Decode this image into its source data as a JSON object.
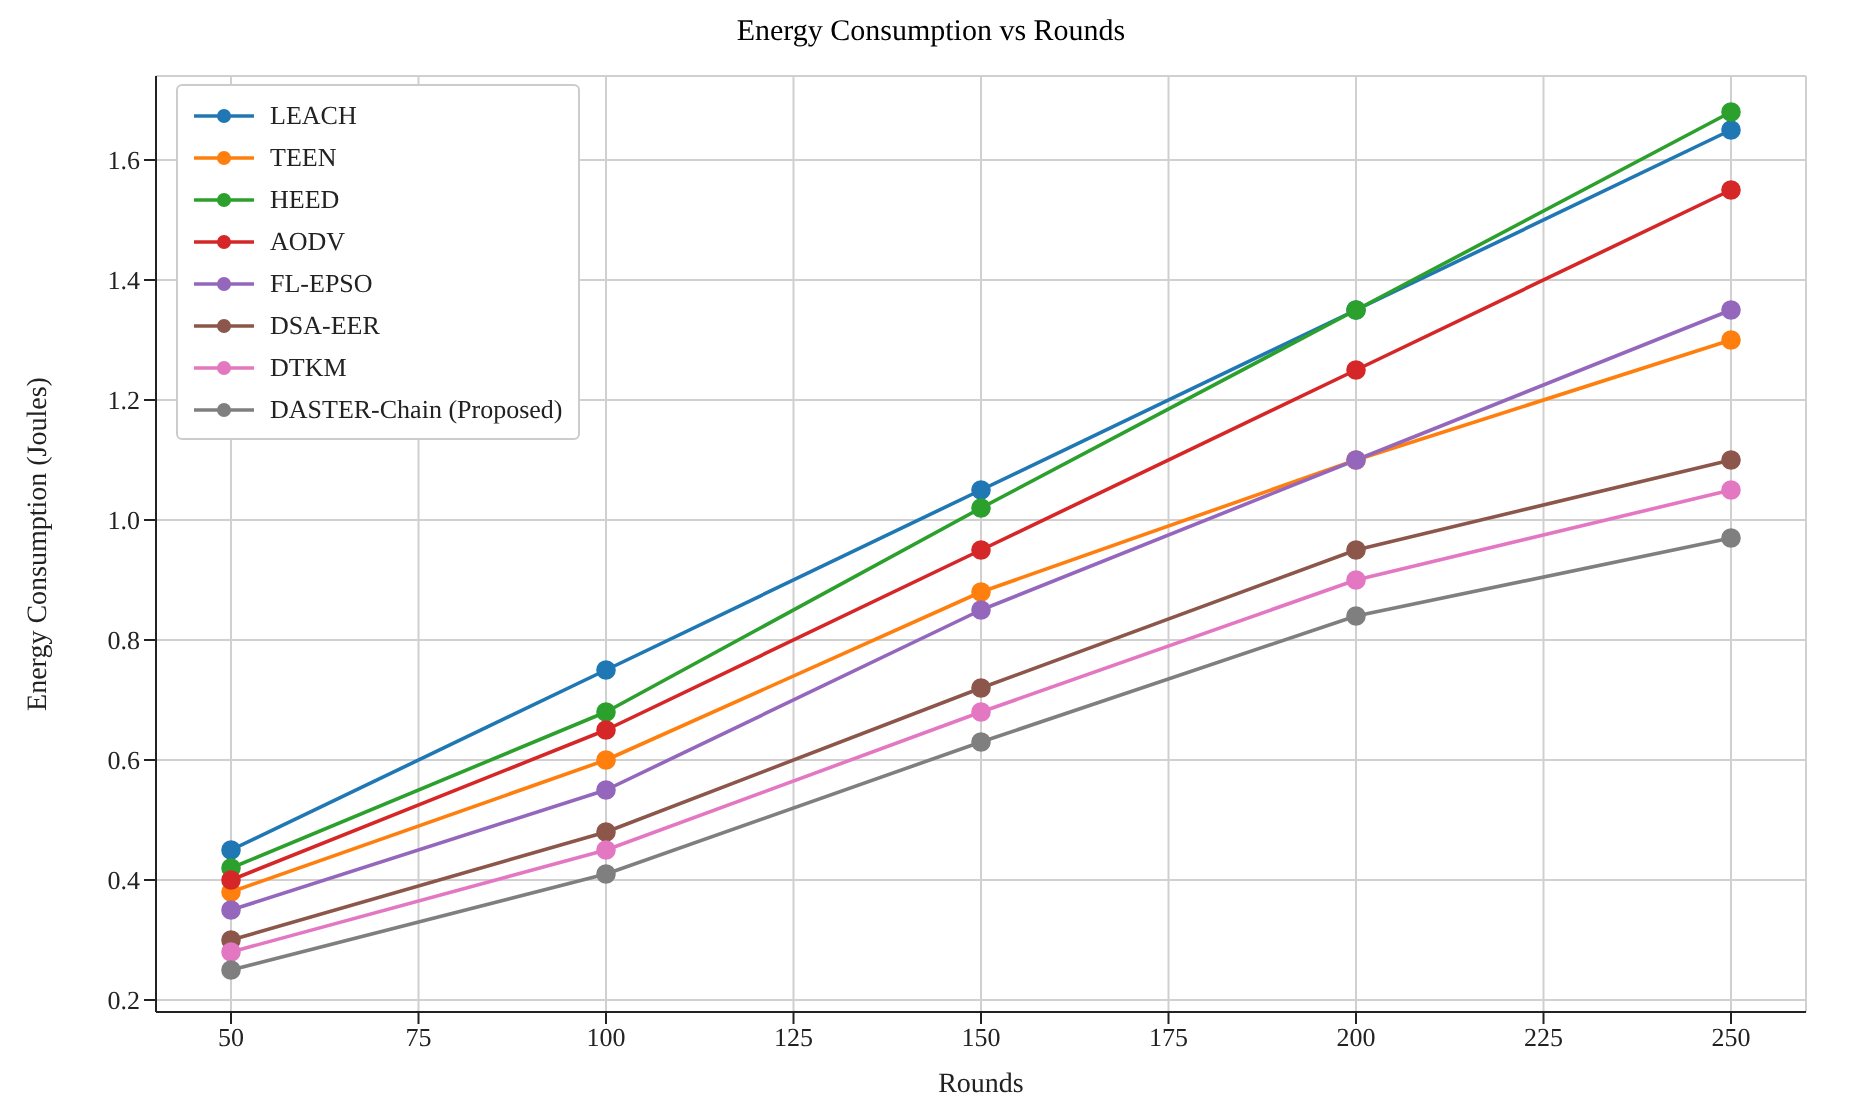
{
  "chart_data": {
    "type": "line",
    "title": "Energy Consumption vs Rounds",
    "xlabel": "Rounds",
    "ylabel": "Energy Consumption (Joules)",
    "x": [
      50,
      100,
      150,
      200,
      250
    ],
    "xlim": [
      40,
      260
    ],
    "xticks": [
      50,
      75,
      100,
      125,
      150,
      175,
      200,
      225,
      250
    ],
    "ylim": [
      0.18,
      1.74
    ],
    "yticks": [
      0.2,
      0.4,
      0.6,
      0.8,
      {
        "value": 1,
        "label": "1.0"
      },
      1.2,
      1.4,
      1.6
    ],
    "grid": true,
    "legend": "top left",
    "marker": "circle",
    "line_style": "solid",
    "series": [
      {
        "name": "LEACH",
        "color": "#1f77b4",
        "values": [
          0.45,
          0.75,
          1.05,
          1.35,
          1.65
        ]
      },
      {
        "name": "TEEN",
        "color": "#ff7f0e",
        "values": [
          0.38,
          0.6,
          0.88,
          1.1,
          1.3
        ]
      },
      {
        "name": "HEED",
        "color": "#2ca02c",
        "values": [
          0.42,
          0.68,
          1.02,
          1.35,
          1.68
        ]
      },
      {
        "name": "AODV",
        "color": "#d62728",
        "values": [
          0.4,
          0.65,
          0.95,
          1.25,
          1.55
        ]
      },
      {
        "name": "FL-EPSO",
        "color": "#9467bd",
        "values": [
          0.35,
          0.55,
          0.85,
          1.1,
          1.35
        ]
      },
      {
        "name": "DSA-EER",
        "color": "#8c564b",
        "values": [
          0.3,
          0.48,
          0.72,
          0.95,
          1.1
        ]
      },
      {
        "name": "DTKM",
        "color": "#e377c2",
        "values": [
          0.28,
          0.45,
          0.68,
          0.9,
          1.05
        ]
      },
      {
        "name": "DASTER-Chain (Proposed)",
        "color": "#7f7f7f",
        "values": [
          0.25,
          0.41,
          0.63,
          0.84,
          0.97
        ]
      }
    ]
  }
}
